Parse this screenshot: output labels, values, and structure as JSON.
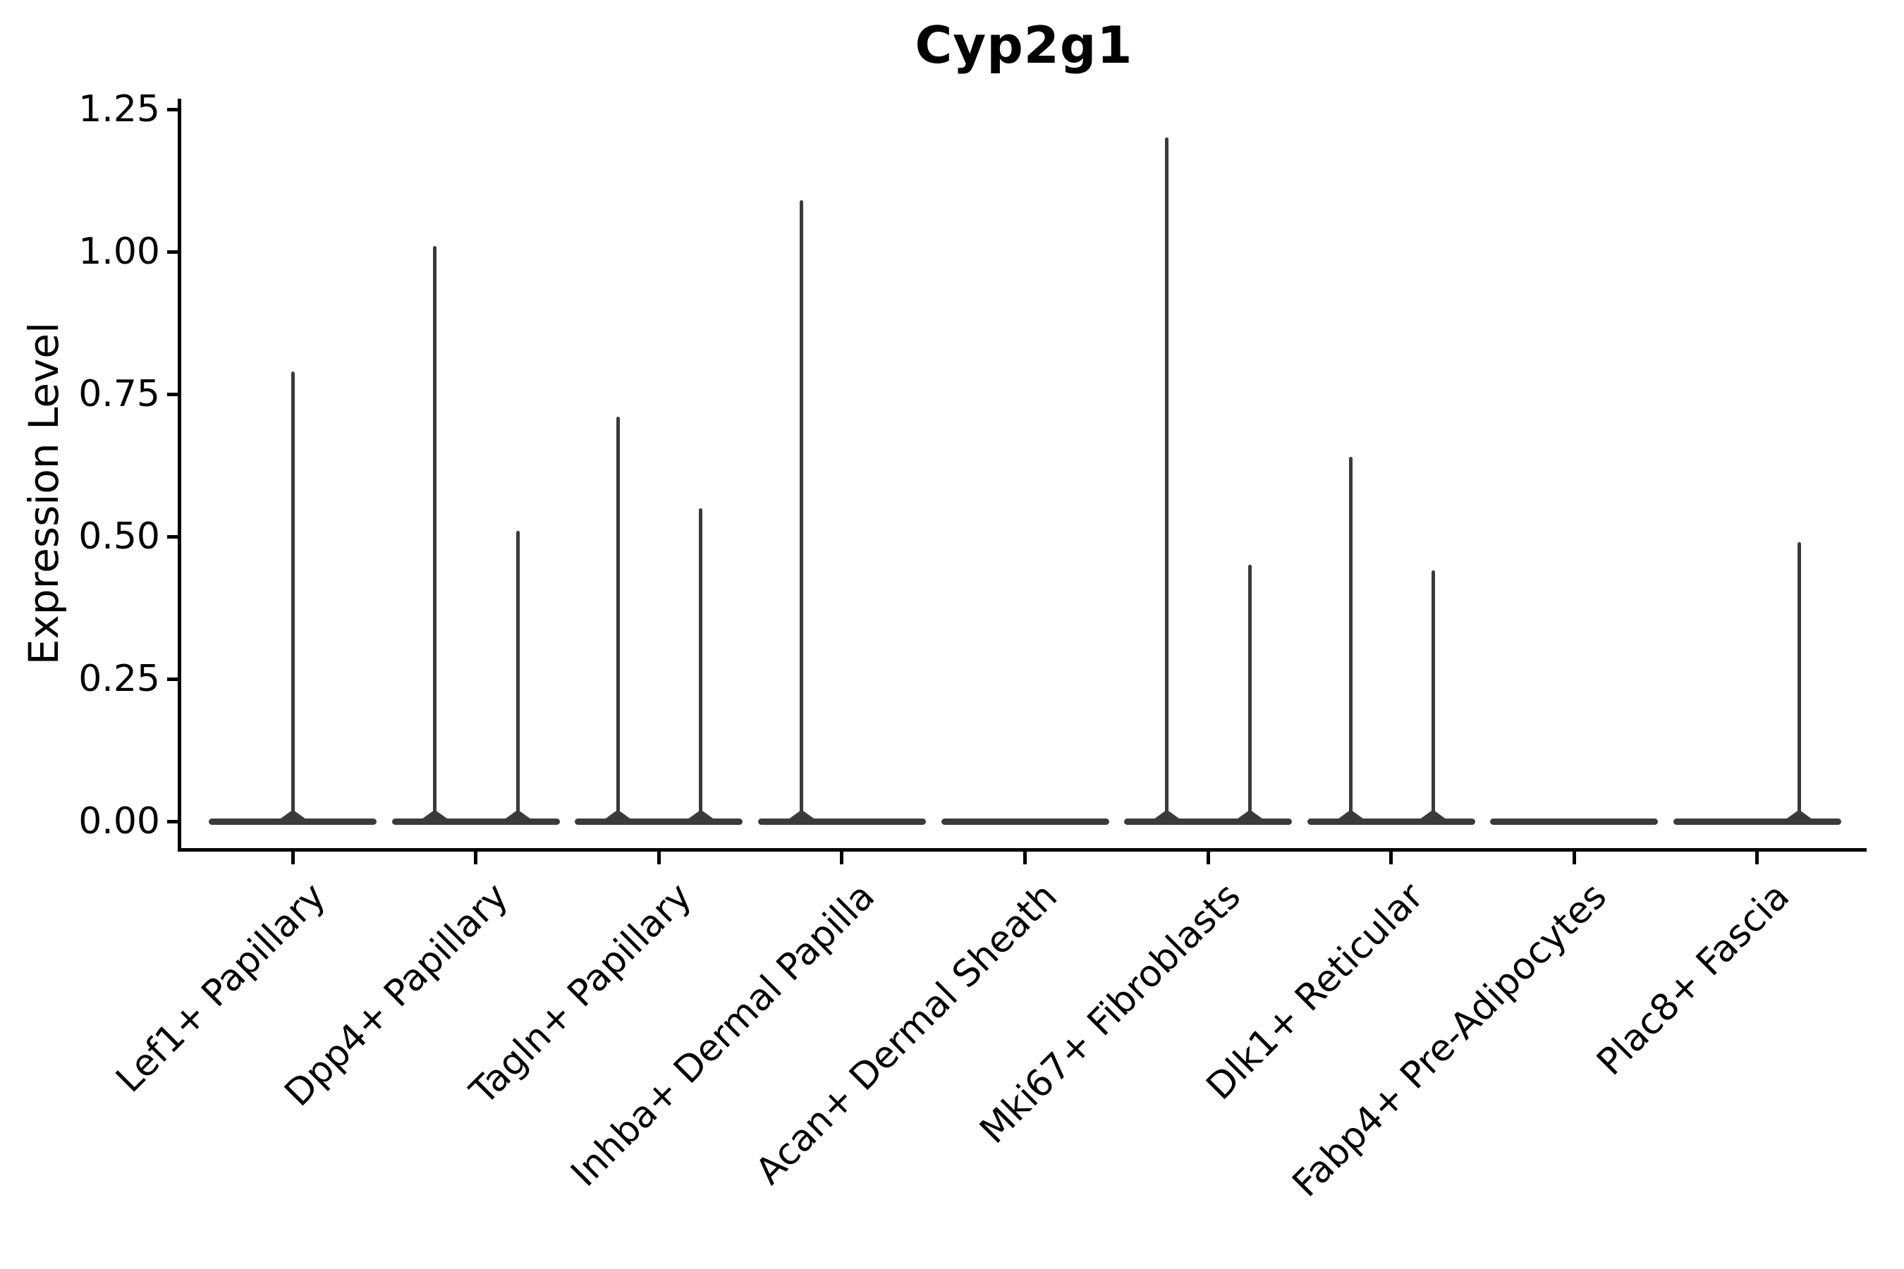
{
  "title": "Cyp2g1",
  "chart_data": {
    "type": "violin",
    "title": "Cyp2g1",
    "subtitle": "",
    "xlabel": "",
    "ylabel": "Expression Level",
    "ylim": [
      -0.05,
      1.27
    ],
    "yticks": [
      "0.00",
      "0.25",
      "0.50",
      "0.75",
      "1.00",
      "1.25"
    ],
    "grid": false,
    "legend": "none",
    "violin_color": "#3a3a3a",
    "axis_color": "#000000",
    "background_color": "#ffffff",
    "categories": [
      "Lef1+ Papillary",
      "Dpp4+ Papillary",
      "Tagln+ Papillary",
      "Inhba+ Dermal Papilla",
      "Acan+ Dermal Sheath",
      "Mki67+ Fibroblasts",
      "Dlk1+ Reticular",
      "Fabp4+ Pre-Adipocytes",
      "Plac8+ Fascia"
    ],
    "violins": [
      {
        "category": "Lef1+ Papillary",
        "baseline_at": 0,
        "max_value": 0.79,
        "spikes": [
          {
            "value": 0.79,
            "pos": 0.0
          }
        ]
      },
      {
        "category": "Dpp4+ Papillary",
        "baseline_at": 0,
        "max_value": 1.01,
        "spikes": [
          {
            "value": 1.01,
            "pos": -0.49
          },
          {
            "value": 0.51,
            "pos": 0.5
          }
        ]
      },
      {
        "category": "Tagln+ Papillary",
        "baseline_at": 0,
        "max_value": 0.71,
        "spikes": [
          {
            "value": 0.71,
            "pos": -0.49
          },
          {
            "value": 0.55,
            "pos": 0.5
          }
        ]
      },
      {
        "category": "Inhba+ Dermal Papilla",
        "baseline_at": 0,
        "max_value": 1.09,
        "spikes": [
          {
            "value": 1.09,
            "pos": -0.48
          }
        ]
      },
      {
        "category": "Acan+ Dermal Sheath",
        "baseline_at": 0,
        "max_value": 0.0,
        "spikes": []
      },
      {
        "category": "Mki67+ Fibroblasts",
        "baseline_at": 0,
        "max_value": 1.2,
        "spikes": [
          {
            "value": 1.2,
            "pos": -0.49
          },
          {
            "value": 0.45,
            "pos": 0.5
          }
        ]
      },
      {
        "category": "Dlk1+ Reticular",
        "baseline_at": 0,
        "max_value": 0.64,
        "spikes": [
          {
            "value": 0.64,
            "pos": -0.48
          },
          {
            "value": 0.44,
            "pos": 0.5
          }
        ]
      },
      {
        "category": "Fabp4+ Pre-Adipocytes",
        "baseline_at": 0,
        "max_value": 0.0,
        "spikes": []
      },
      {
        "category": "Plac8+ Fascia",
        "baseline_at": 0,
        "max_value": 0.49,
        "spikes": [
          {
            "value": 0.49,
            "pos": 0.5
          }
        ]
      }
    ]
  }
}
